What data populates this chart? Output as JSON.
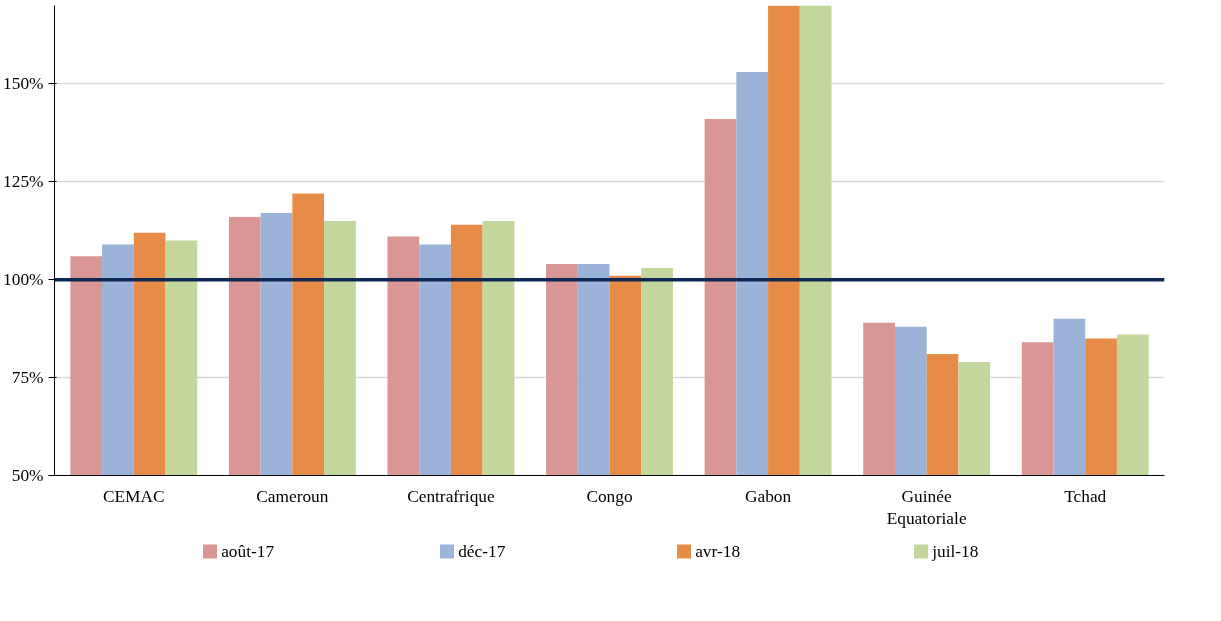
{
  "chart_data": {
    "type": "bar",
    "categories": [
      "CEMAC",
      "Cameroun",
      "Centrafrique",
      "Congo",
      "Gabon",
      "Guinée\nEquatoriale",
      "Tchad"
    ],
    "series": [
      {
        "name": "août-17",
        "color": "#d99694",
        "values": [
          106,
          116,
          111,
          104,
          141,
          89,
          84
        ]
      },
      {
        "name": "déc-17",
        "color": "#9bb3d9",
        "values": [
          109,
          117,
          109,
          104,
          153,
          88,
          90
        ]
      },
      {
        "name": "avr-18",
        "color": "#e68c48",
        "values": [
          112,
          122,
          114,
          101,
          170,
          81,
          85
        ]
      },
      {
        "name": "juil-18",
        "color": "#c3d69b",
        "values": [
          110,
          115,
          115,
          103,
          170,
          79,
          86
        ]
      }
    ],
    "ylim": [
      50,
      170
    ],
    "yticks": [
      {
        "value": 50,
        "label": "50%"
      },
      {
        "value": 75,
        "label": "75%"
      },
      {
        "value": 100,
        "label": "100%"
      },
      {
        "value": 125,
        "label": "125%"
      },
      {
        "value": 150,
        "label": "150%"
      }
    ],
    "ref_lines": [
      {
        "axis": "y",
        "value": 100,
        "color": "#0e2856"
      }
    ],
    "grid": "y",
    "legend": "bottom"
  }
}
